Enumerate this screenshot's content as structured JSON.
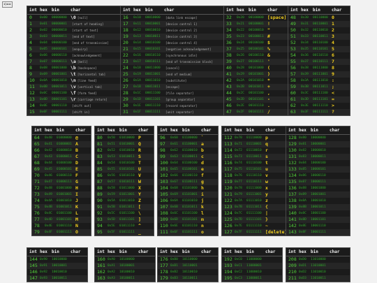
{
  "nav": {
    "back_label": "<=="
  },
  "headers": {
    "int": "int",
    "hex": "hex",
    "bin": "bin",
    "char": "char"
  },
  "tables": [
    {
      "id": "t0",
      "rows": [
        [
          "0",
          "0x00",
          "00000000",
          "\\0",
          "[null]"
        ],
        [
          "1",
          "0x01",
          "00000001",
          "",
          "[start of heading]"
        ],
        [
          "2",
          "0x02",
          "00000010",
          "",
          "[start of text]"
        ],
        [
          "3",
          "0x03",
          "00000011",
          "",
          "[end of text]"
        ],
        [
          "4",
          "0x04",
          "00000100",
          "",
          "[end of transmission]"
        ],
        [
          "5",
          "0x05",
          "00000101",
          "",
          "[enquiry]"
        ],
        [
          "6",
          "0x06",
          "00000110",
          "",
          "[acknowledgement]"
        ],
        [
          "7",
          "0x07",
          "00000111",
          "\\a",
          "[bell]"
        ],
        [
          "8",
          "0x08",
          "00001000",
          "\\b",
          "[backspace]"
        ],
        [
          "9",
          "0x09",
          "00001001",
          "\\t",
          "[horizontal tab]"
        ],
        [
          "10",
          "0x0A",
          "00001010",
          "\\n",
          "[line feed]"
        ],
        [
          "11",
          "0x0B",
          "00001011",
          "\\v",
          "[vertical tab]"
        ],
        [
          "12",
          "0x0C",
          "00001100",
          "\\f",
          "[form feed]"
        ],
        [
          "13",
          "0x0D",
          "00001101",
          "\\r",
          "[carriage return]"
        ],
        [
          "14",
          "0x0E",
          "00001110",
          "",
          "[shift out]"
        ],
        [
          "15",
          "0x0F",
          "00001111",
          "",
          "[shift in]"
        ]
      ]
    },
    {
      "id": "t1",
      "rows": [
        [
          "16",
          "0x10",
          "00010000",
          "",
          "[data link escape]"
        ],
        [
          "17",
          "0x11",
          "00010001",
          "",
          "[device control 1]"
        ],
        [
          "18",
          "0x12",
          "00010010",
          "",
          "[device control 2]"
        ],
        [
          "19",
          "0x13",
          "00010011",
          "",
          "[device control 3]"
        ],
        [
          "20",
          "0x14",
          "00010100",
          "",
          "[device control 4]"
        ],
        [
          "21",
          "0x15",
          "00010101",
          "",
          "[negative acknowledgement]"
        ],
        [
          "22",
          "0x16",
          "00010110",
          "",
          "[synchronous idle]"
        ],
        [
          "23",
          "0x17",
          "00010111",
          "",
          "[end of transmission block]"
        ],
        [
          "24",
          "0x18",
          "00011000",
          "",
          "[cancel]"
        ],
        [
          "25",
          "0x19",
          "00011001",
          "",
          "[end of medium]"
        ],
        [
          "26",
          "0x1A",
          "00011010",
          "",
          "[substitute]"
        ],
        [
          "27",
          "0x1B",
          "00011011",
          "",
          "[escape]"
        ],
        [
          "28",
          "0x1C",
          "00011100",
          "",
          "[file separator]"
        ],
        [
          "29",
          "0x1D",
          "00011101",
          "",
          "[group separator]"
        ],
        [
          "30",
          "0x1E",
          "00011110",
          "",
          "[record separator]"
        ],
        [
          "31",
          "0x1F",
          "00011111",
          "",
          "[unit separator]"
        ]
      ]
    },
    {
      "id": "t2",
      "rows": [
        [
          "32",
          "0x20",
          "00100000",
          "[space]"
        ],
        [
          "33",
          "0x21",
          "00100001",
          "!"
        ],
        [
          "34",
          "0x22",
          "00100010",
          "\""
        ],
        [
          "35",
          "0x23",
          "00100011",
          "#"
        ],
        [
          "36",
          "0x24",
          "00100100",
          "$"
        ],
        [
          "37",
          "0x25",
          "00100101",
          "%"
        ],
        [
          "38",
          "0x26",
          "00100110",
          "&"
        ],
        [
          "39",
          "0x27",
          "00100111",
          "'"
        ],
        [
          "40",
          "0x28",
          "00101000",
          "("
        ],
        [
          "41",
          "0x29",
          "00101001",
          ")"
        ],
        [
          "42",
          "0x2A",
          "00101010",
          "*"
        ],
        [
          "43",
          "0x2B",
          "00101011",
          "+"
        ],
        [
          "44",
          "0x2C",
          "00101100",
          ","
        ],
        [
          "45",
          "0x2D",
          "00101101",
          "-"
        ],
        [
          "46",
          "0x2E",
          "00101110",
          "."
        ],
        [
          "47",
          "0x2F",
          "00101111",
          "/"
        ]
      ]
    },
    {
      "id": "t3",
      "rows": [
        [
          "48",
          "0x30",
          "00110000",
          "0"
        ],
        [
          "49",
          "0x31",
          "00110001",
          "1"
        ],
        [
          "50",
          "0x32",
          "00110010",
          "2"
        ],
        [
          "51",
          "0x33",
          "00110011",
          "3"
        ],
        [
          "52",
          "0x34",
          "00110100",
          "4"
        ],
        [
          "53",
          "0x35",
          "00110101",
          "5"
        ],
        [
          "54",
          "0x36",
          "00110110",
          "6"
        ],
        [
          "55",
          "0x37",
          "00110111",
          "7"
        ],
        [
          "56",
          "0x38",
          "00111000",
          "8"
        ],
        [
          "57",
          "0x39",
          "00111001",
          "9"
        ],
        [
          "58",
          "0x3A",
          "00111010",
          ":"
        ],
        [
          "59",
          "0x3B",
          "00111011",
          ";"
        ],
        [
          "60",
          "0x3C",
          "00111100",
          "<"
        ],
        [
          "61",
          "0x3D",
          "00111101",
          "="
        ],
        [
          "62",
          "0x3E",
          "00111110",
          ">"
        ],
        [
          "63",
          "0x3F",
          "00111111",
          "?"
        ]
      ]
    },
    {
      "id": "t4",
      "rows": [
        [
          "64",
          "0x40",
          "01000000",
          "@"
        ],
        [
          "65",
          "0x41",
          "01000001",
          "A"
        ],
        [
          "66",
          "0x42",
          "01000010",
          "B"
        ],
        [
          "67",
          "0x43",
          "01000011",
          "C"
        ],
        [
          "68",
          "0x44",
          "01000100",
          "D"
        ],
        [
          "69",
          "0x45",
          "01000101",
          "E"
        ],
        [
          "70",
          "0x46",
          "01000110",
          "F"
        ],
        [
          "71",
          "0x47",
          "01000111",
          "G"
        ],
        [
          "72",
          "0x48",
          "01001000",
          "H"
        ],
        [
          "73",
          "0x49",
          "01001001",
          "I"
        ],
        [
          "74",
          "0x4A",
          "01001010",
          "J"
        ],
        [
          "75",
          "0x4B",
          "01001011",
          "K"
        ],
        [
          "76",
          "0x4C",
          "01001100",
          "L"
        ],
        [
          "77",
          "0x4D",
          "01001101",
          "M"
        ],
        [
          "78",
          "0x4E",
          "01001110",
          "N"
        ],
        [
          "79",
          "0x4F",
          "01001111",
          "O"
        ]
      ]
    },
    {
      "id": "t5",
      "rows": [
        [
          "80",
          "0x50",
          "01010000",
          "P"
        ],
        [
          "81",
          "0x51",
          "01010001",
          "Q"
        ],
        [
          "82",
          "0x52",
          "01010010",
          "R"
        ],
        [
          "83",
          "0x53",
          "01010011",
          "S"
        ],
        [
          "84",
          "0x54",
          "01010100",
          "T"
        ],
        [
          "85",
          "0x55",
          "01010101",
          "U"
        ],
        [
          "86",
          "0x56",
          "01010110",
          "V"
        ],
        [
          "87",
          "0x57",
          "01010111",
          "W"
        ],
        [
          "88",
          "0x58",
          "01011000",
          "X"
        ],
        [
          "89",
          "0x59",
          "01011001",
          "Y"
        ],
        [
          "90",
          "0x5A",
          "01011010",
          "Z"
        ],
        [
          "91",
          "0x5B",
          "01011011",
          "["
        ],
        [
          "92",
          "0x5C",
          "01011100",
          "\\"
        ],
        [
          "93",
          "0x5D",
          "01011101",
          "]"
        ],
        [
          "94",
          "0x5E",
          "01011110",
          "^"
        ],
        [
          "95",
          "0x5F",
          "01011111",
          "_"
        ]
      ]
    },
    {
      "id": "t6",
      "rows": [
        [
          "96",
          "0x60",
          "01100000",
          "`"
        ],
        [
          "97",
          "0x61",
          "01100001",
          "a"
        ],
        [
          "98",
          "0x62",
          "01100010",
          "b"
        ],
        [
          "99",
          "0x63",
          "01100011",
          "c"
        ],
        [
          "100",
          "0x64",
          "01100100",
          "d"
        ],
        [
          "101",
          "0x65",
          "01100101",
          "e"
        ],
        [
          "102",
          "0x66",
          "01100110",
          "f"
        ],
        [
          "103",
          "0x67",
          "01100111",
          "g"
        ],
        [
          "104",
          "0x68",
          "01101000",
          "h"
        ],
        [
          "105",
          "0x69",
          "01101001",
          "i"
        ],
        [
          "106",
          "0x6A",
          "01101010",
          "j"
        ],
        [
          "107",
          "0x6B",
          "01101011",
          "k"
        ],
        [
          "108",
          "0x6C",
          "01101100",
          "l"
        ],
        [
          "109",
          "0x6D",
          "01101101",
          "m"
        ],
        [
          "110",
          "0x6E",
          "01101110",
          "n"
        ],
        [
          "111",
          "0x6F",
          "01101111",
          "o"
        ]
      ]
    },
    {
      "id": "t7",
      "rows": [
        [
          "112",
          "0x70",
          "01110000",
          "p"
        ],
        [
          "113",
          "0x71",
          "01110001",
          "q"
        ],
        [
          "114",
          "0x72",
          "01110010",
          "r"
        ],
        [
          "115",
          "0x73",
          "01110011",
          "s"
        ],
        [
          "116",
          "0x74",
          "01110100",
          "t"
        ],
        [
          "117",
          "0x75",
          "01110101",
          "u"
        ],
        [
          "118",
          "0x76",
          "01110110",
          "v"
        ],
        [
          "119",
          "0x77",
          "01110111",
          "w"
        ],
        [
          "120",
          "0x78",
          "01111000",
          "x"
        ],
        [
          "121",
          "0x79",
          "01111001",
          "y"
        ],
        [
          "122",
          "0x7A",
          "01111010",
          "z"
        ],
        [
          "123",
          "0x7B",
          "01111011",
          "{"
        ],
        [
          "124",
          "0x7C",
          "01111100",
          "|"
        ],
        [
          "125",
          "0x7D",
          "01111101",
          "}"
        ],
        [
          "126",
          "0x7E",
          "01111110",
          "~"
        ],
        [
          "127",
          "0x7F",
          "01111111",
          "[delete]"
        ]
      ]
    },
    {
      "id": "t8",
      "rows": [
        [
          "128",
          "0x80",
          "10000000",
          ""
        ],
        [
          "129",
          "0x81",
          "10000001",
          ""
        ],
        [
          "130",
          "0x82",
          "10000010",
          ""
        ],
        [
          "131",
          "0x83",
          "10000011",
          ""
        ],
        [
          "132",
          "0x84",
          "10000100",
          ""
        ],
        [
          "133",
          "0x85",
          "10000101",
          ""
        ],
        [
          "134",
          "0x86",
          "10000110",
          ""
        ],
        [
          "135",
          "0x87",
          "10000111",
          ""
        ],
        [
          "136",
          "0x88",
          "10001000",
          ""
        ],
        [
          "137",
          "0x89",
          "10001001",
          ""
        ],
        [
          "138",
          "0x8A",
          "10001010",
          ""
        ],
        [
          "139",
          "0x8B",
          "10001011",
          ""
        ],
        [
          "140",
          "0x8C",
          "10001100",
          ""
        ],
        [
          "141",
          "0x8D",
          "10001101",
          ""
        ],
        [
          "142",
          "0x8E",
          "10001110",
          ""
        ],
        [
          "143",
          "0x8F",
          "10001111",
          ""
        ]
      ]
    },
    {
      "id": "t9",
      "rows": [
        [
          "144",
          "0x90",
          "10010000",
          ""
        ],
        [
          "145",
          "0x91",
          "10010001",
          ""
        ],
        [
          "146",
          "0x92",
          "10010010",
          ""
        ],
        [
          "147",
          "0x93",
          "10010011",
          ""
        ]
      ]
    },
    {
      "id": "t10",
      "rows": [
        [
          "160",
          "0xA0",
          "10100000",
          ""
        ],
        [
          "161",
          "0xA1",
          "10100001",
          ""
        ],
        [
          "162",
          "0xA2",
          "10100010",
          ""
        ],
        [
          "163",
          "0xA3",
          "10100011",
          ""
        ]
      ]
    },
    {
      "id": "t11",
      "rows": [
        [
          "176",
          "0xB0",
          "10110000",
          ""
        ],
        [
          "177",
          "0xB1",
          "10110001",
          ""
        ],
        [
          "178",
          "0xB2",
          "10110010",
          ""
        ],
        [
          "179",
          "0xB3",
          "10110011",
          ""
        ]
      ]
    },
    {
      "id": "t12",
      "rows": [
        [
          "192",
          "0xC0",
          "11000000",
          ""
        ],
        [
          "193",
          "0xC1",
          "11000001",
          ""
        ],
        [
          "194",
          "0xC2",
          "11000010",
          ""
        ],
        [
          "195",
          "0xC3",
          "11000011",
          ""
        ]
      ]
    },
    {
      "id": "t13",
      "rows": [
        [
          "208",
          "0xD0",
          "11010000",
          ""
        ],
        [
          "209",
          "0xD1",
          "11010001",
          ""
        ],
        [
          "210",
          "0xD2",
          "11010010",
          ""
        ],
        [
          "211",
          "0xD3",
          "11010011",
          ""
        ]
      ]
    }
  ]
}
